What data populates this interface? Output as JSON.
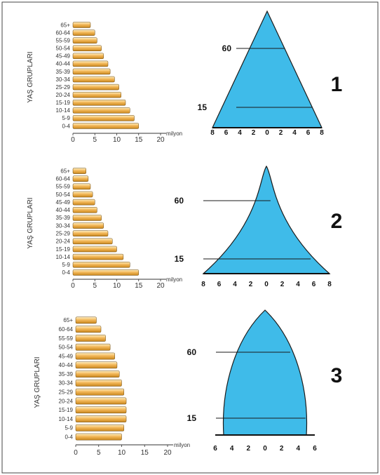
{
  "y_axis_label": "YAŞ GRUPLARI",
  "unit_label": "milyon",
  "age_groups": [
    "0-4",
    "5-9",
    "10-14",
    "15-19",
    "20-24",
    "25-29",
    "30-34",
    "35-39",
    "40-44",
    "45-49",
    "50-54",
    "55-59",
    "60-64",
    "65+"
  ],
  "bar_colors": {
    "light": "#fff0c4",
    "mid": "#f3b85a",
    "dark": "#c9861c",
    "outline": "#6a4810"
  },
  "shape_color": "#3fbbe9",
  "chart_data": [
    {
      "type": "bar",
      "panel_number": "1",
      "categories": [
        "0-4",
        "5-9",
        "10-14",
        "15-19",
        "20-24",
        "25-29",
        "30-34",
        "35-39",
        "40-44",
        "45-49",
        "50-54",
        "55-59",
        "60-64",
        "65+"
      ],
      "values": [
        15,
        14,
        13,
        12,
        11,
        10.5,
        9.5,
        8.5,
        8,
        7,
        6.5,
        5.5,
        5,
        4
      ],
      "x_ticks": [
        "0",
        "5",
        "10",
        "15",
        "20"
      ],
      "xlim": [
        0,
        20
      ],
      "pyramid": {
        "shape": "triangle",
        "x_ticks": [
          "8",
          "6",
          "4",
          "2",
          "0",
          "2",
          "4",
          "6",
          "8"
        ],
        "age_marks": [
          "60",
          "15"
        ]
      }
    },
    {
      "type": "bar",
      "panel_number": "2",
      "categories": [
        "0-4",
        "5-9",
        "10-14",
        "15-19",
        "20-24",
        "25-29",
        "30-34",
        "35-39",
        "40-44",
        "45-49",
        "50-54",
        "55-59",
        "60-64",
        "65+"
      ],
      "values": [
        15,
        13,
        11.5,
        10,
        9,
        8,
        7,
        6.5,
        5.5,
        5,
        4.5,
        4,
        3.5,
        3
      ],
      "x_ticks": [
        "0",
        "5",
        "10",
        "15",
        "20"
      ],
      "xlim": [
        0,
        20
      ],
      "pyramid": {
        "shape": "concave",
        "x_ticks": [
          "8",
          "6",
          "4",
          "2",
          "0",
          "2",
          "4",
          "6",
          "8"
        ],
        "age_marks": [
          "60",
          "15"
        ]
      }
    },
    {
      "type": "bar",
      "panel_number": "3",
      "categories": [
        "0-4",
        "5-9",
        "10-14",
        "15-19",
        "20-24",
        "25-29",
        "30-34",
        "35-39",
        "40-44",
        "45-49",
        "50-54",
        "55-59",
        "60-64",
        "65+"
      ],
      "values": [
        10,
        10.5,
        11,
        11,
        11,
        10.5,
        10,
        9.5,
        9,
        8.5,
        7.5,
        6.5,
        5.5,
        4.5
      ],
      "x_ticks": [
        "0",
        "5",
        "10",
        "15",
        "20"
      ],
      "xlim": [
        0,
        20
      ],
      "pyramid": {
        "shape": "bell",
        "x_ticks": [
          "6",
          "4",
          "2",
          "0",
          "2",
          "4",
          "6"
        ],
        "age_marks": [
          "60",
          "15"
        ]
      }
    }
  ]
}
